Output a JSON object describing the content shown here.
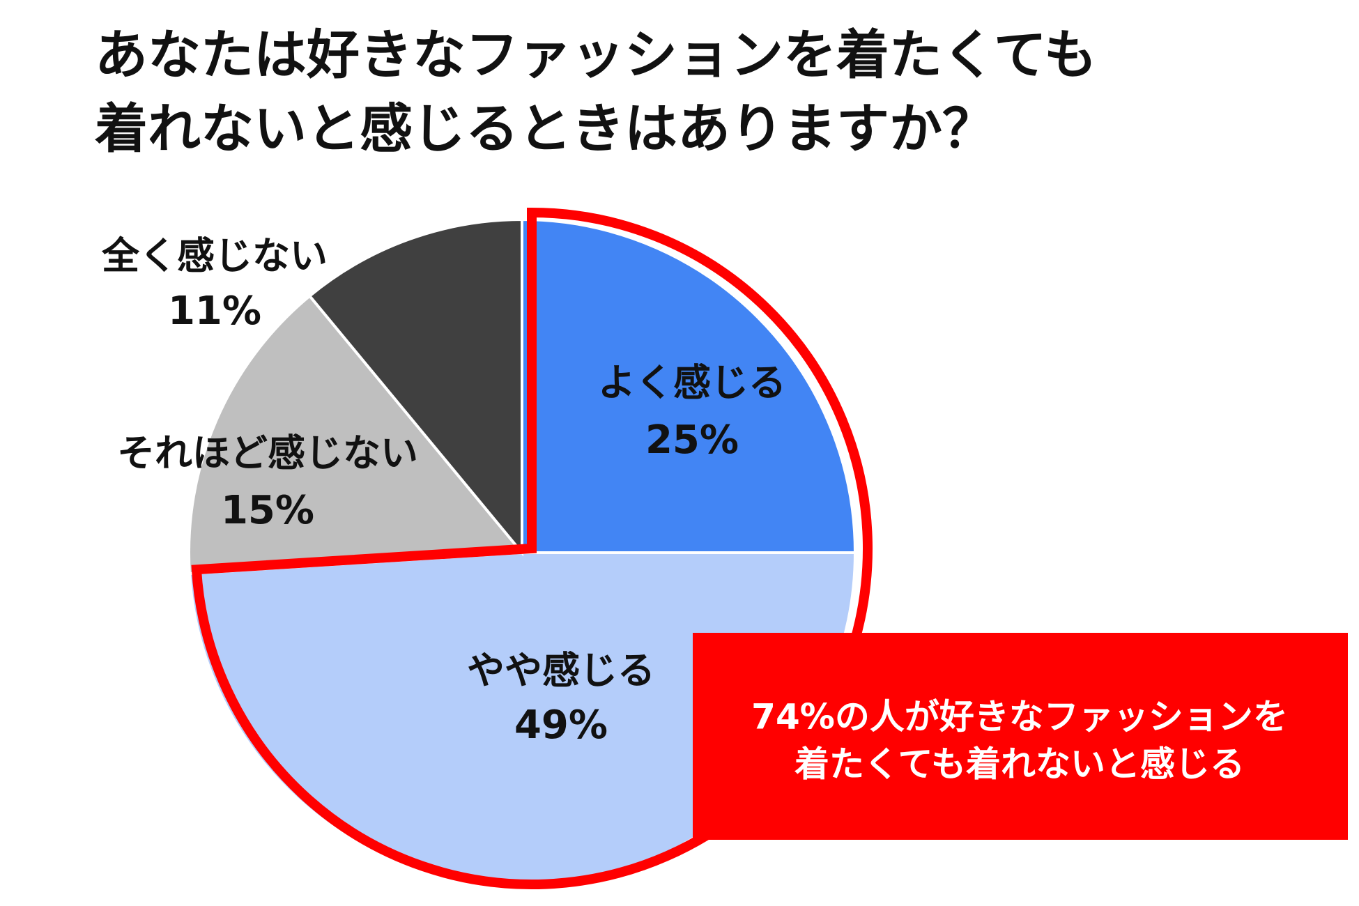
{
  "chart_data": {
    "type": "pie",
    "title": [
      "あなたは好きなファッションを着たくても",
      "着れないと感じるときはありますか？"
    ],
    "categories": [
      "よく感じる",
      "やや感じる",
      "それほど感じない",
      "全く感じない"
    ],
    "values": [
      25,
      49,
      15,
      11
    ],
    "value_labels": [
      "25%",
      "49%",
      "15%",
      "11%"
    ],
    "colors": [
      "#4285f4",
      "#b4cdfa",
      "#bfbfbf",
      "#404040"
    ],
    "highlight_color": "#ff0000",
    "annotation": [
      "74%の人が好きなファッションを",
      "着たくても着れないと感じる"
    ]
  }
}
